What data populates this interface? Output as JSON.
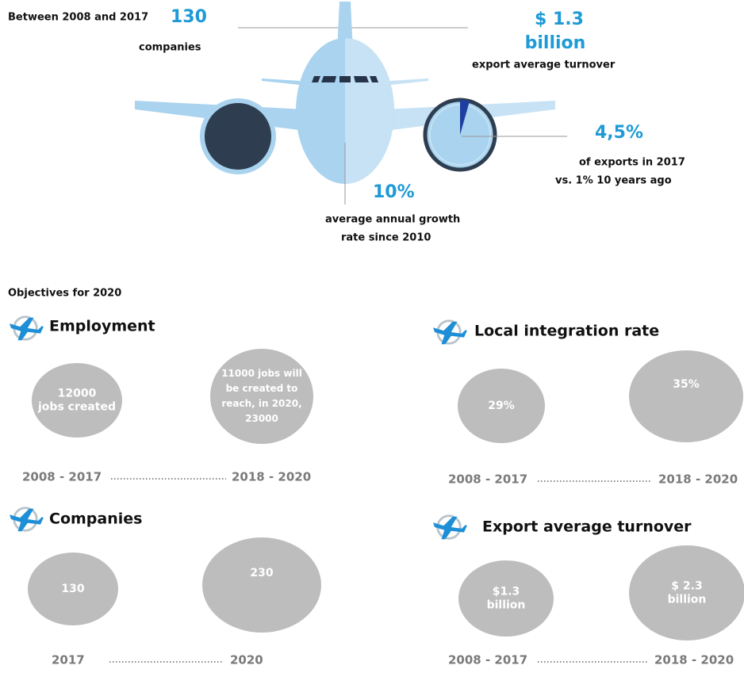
{
  "header": {
    "period": "Between 2008 and 2017",
    "companies": {
      "value": "130",
      "label": "companies"
    },
    "turnover": {
      "value": "$ 1.3",
      "unit": "billion",
      "label": "export average turnover"
    },
    "export_share": {
      "value": "4,5%",
      "lines": [
        "of exports in 2017",
        "vs. 1% 10 years ago"
      ]
    },
    "growth": {
      "value": "10%",
      "lines": [
        "average annual growth",
        "rate since 2010"
      ]
    }
  },
  "objectives": {
    "title": "Objectives for 2020",
    "sections": [
      {
        "title": "Employment",
        "from": {
          "lines": [
            "12000",
            "jobs created"
          ],
          "period": "2008 - 2017"
        },
        "to": {
          "lines": [
            "11000 jobs will",
            "be created to",
            "reach, in 2020,",
            "23000"
          ],
          "period": "2018 - 2020"
        }
      },
      {
        "title": "Local integration rate",
        "from": {
          "lines": [
            "29%"
          ],
          "period": "2008 - 2017"
        },
        "to": {
          "lines": [
            "35%"
          ],
          "period": "2018 - 2020"
        }
      },
      {
        "title": "Companies",
        "from": {
          "lines": [
            "130"
          ],
          "period": "2017"
        },
        "to": {
          "lines": [
            "230"
          ],
          "period": "2020"
        }
      },
      {
        "title": "Export average turnover",
        "from": {
          "lines": [
            "$1.3",
            "billion"
          ],
          "period": "2008 - 2017"
        },
        "to": {
          "lines": [
            "$ 2.3",
            "billion"
          ],
          "period": "2018 - 2020"
        }
      }
    ]
  }
}
